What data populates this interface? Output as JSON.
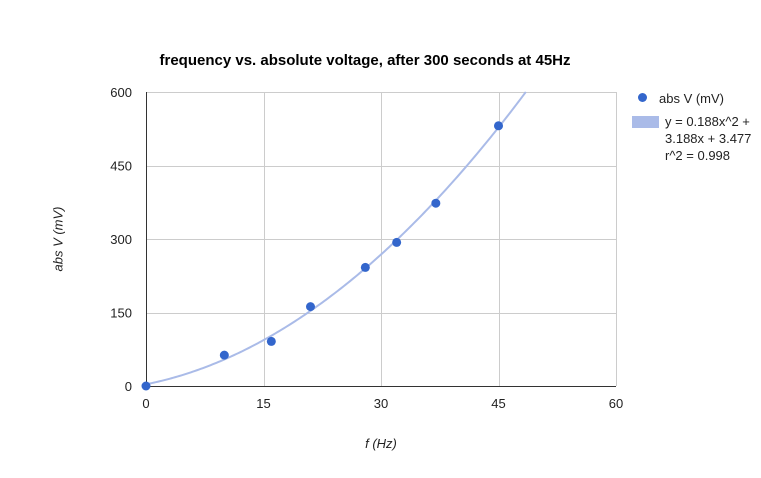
{
  "chart_data": {
    "type": "scatter",
    "title": "frequency vs. absolute voltage, after 300 seconds at 45Hz",
    "xlabel": "f (Hz)",
    "ylabel": "abs V (mV)",
    "xlim": [
      0,
      60
    ],
    "ylim": [
      0,
      600
    ],
    "xticks": [
      0,
      15,
      30,
      45,
      60
    ],
    "yticks": [
      0,
      150,
      300,
      450,
      600
    ],
    "grid": true,
    "legend_position": "right",
    "series": [
      {
        "name": "abs V (mV)",
        "color": "#3366cc",
        "points": [
          {
            "x": 0,
            "y": 0
          },
          {
            "x": 10,
            "y": 63
          },
          {
            "x": 16,
            "y": 91
          },
          {
            "x": 21,
            "y": 162
          },
          {
            "x": 28,
            "y": 242
          },
          {
            "x": 32,
            "y": 293
          },
          {
            "x": 37,
            "y": 373
          },
          {
            "x": 45,
            "y": 531
          }
        ]
      }
    ],
    "trendline": {
      "type": "polynomial",
      "coefficients": {
        "a": 0.188,
        "b": 3.188,
        "c": 3.477
      },
      "color": "#aabbe8",
      "label_line1": "y = 0.188x^2 + 3.188x + 3.477",
      "label_line2": "r^2 = 0.998"
    }
  }
}
